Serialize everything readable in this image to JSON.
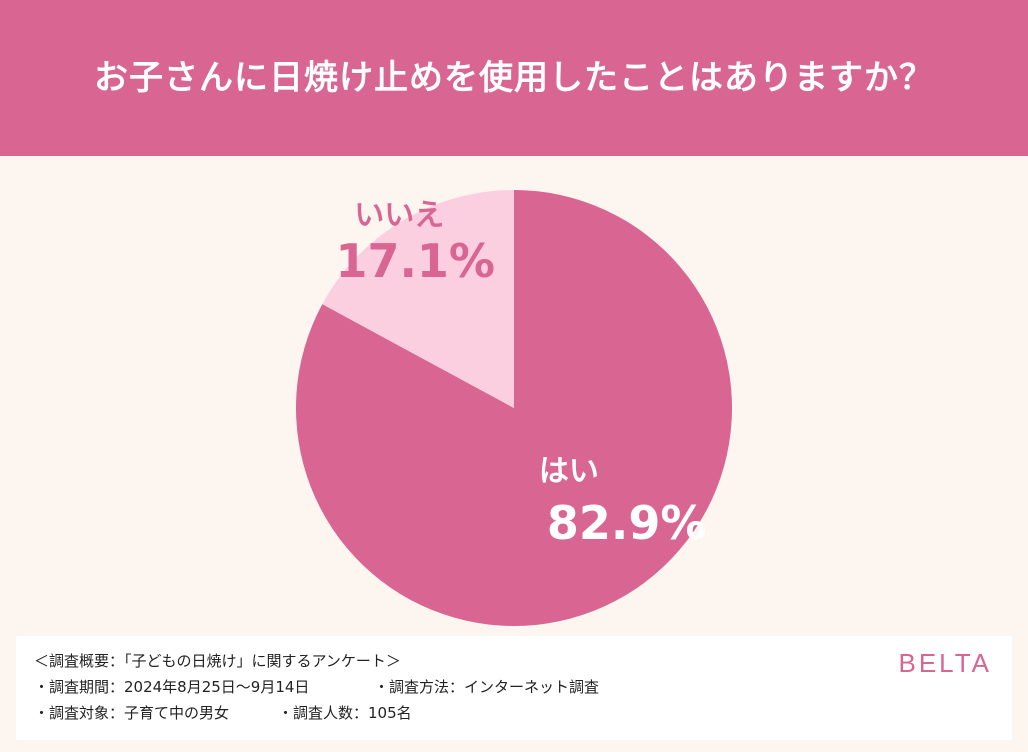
{
  "header": {
    "title": "お子さんに日焼け止めを使用したことはありますか？"
  },
  "colors": {
    "header_bg": "#d86592",
    "yes": "#d86592",
    "no": "#fbcfe0",
    "no_text": "#d86592",
    "yes_text": "#ffffff",
    "background": "#fdf5f0"
  },
  "chart_data": {
    "type": "pie",
    "title": "お子さんに日焼け止めを使用したことはありますか？",
    "start_angle": "12 o'clock",
    "direction": "clockwise",
    "slices": [
      {
        "label": "はい",
        "value": 82.9,
        "value_label": "82.9%"
      },
      {
        "label": "いいえ",
        "value": 17.1,
        "value_label": "17.1%"
      }
    ]
  },
  "footer": {
    "line1": "＜調査概要：「子どもの日焼け」に関するアンケート＞",
    "line2a": "・調査期間：2024年8月25日〜9月14日",
    "line2b": "・調査方法：インターネット調査",
    "line3a": "・調査対象：子育て中の男女",
    "line3b": "・調査人数：105名",
    "brand": "BELTA"
  }
}
